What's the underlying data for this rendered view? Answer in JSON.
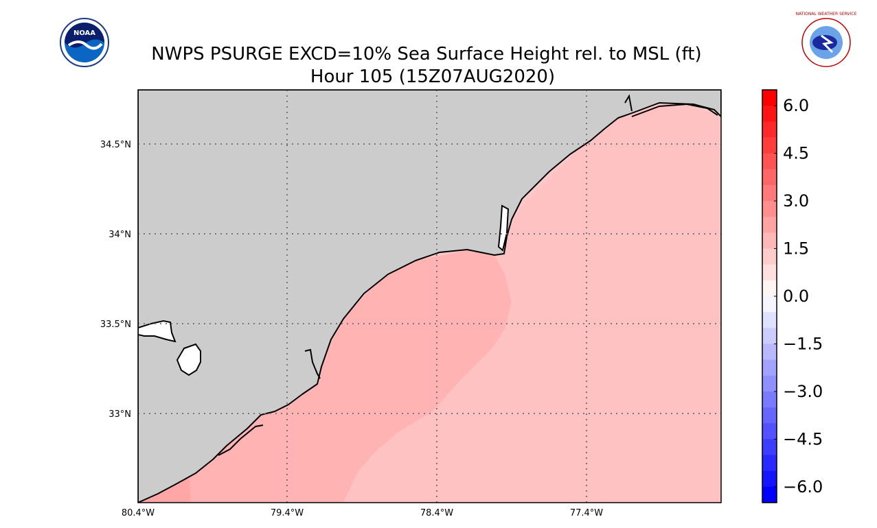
{
  "title_line1": "NWPS PSURGE EXCD=10% Sea Surface Height rel. to MSL (ft)",
  "title_line2": "Hour 105 (15Z07AUG2020)",
  "logos": {
    "left": {
      "text": "NOAA",
      "icon": "noaa-logo-icon"
    },
    "right": {
      "text": "NATIONAL WEATHER SERVICE",
      "icon": "nws-logo-icon"
    }
  },
  "map": {
    "lon_ticks": [
      "80.4°W",
      "79.4°W",
      "78.4°W",
      "77.4°W"
    ],
    "lat_ticks": [
      "34.5°N",
      "34°N",
      "33.5°N",
      "33°N"
    ],
    "land_color": "#cccccc",
    "water_color_low": "#ffb3b3",
    "water_color_mid": "#ffc2c2",
    "water_color_high": "#ffc8c8"
  },
  "colorbar": {
    "min": -6.5,
    "max": 6.5,
    "ticks": [
      "6.0",
      "4.5",
      "3.0",
      "1.5",
      "0.0",
      "−1.5",
      "−3.0",
      "−4.5",
      "−6.0"
    ],
    "top_color": "#ff0000",
    "mid_color": "#ffffff",
    "bottom_color": "#0000ff"
  }
}
